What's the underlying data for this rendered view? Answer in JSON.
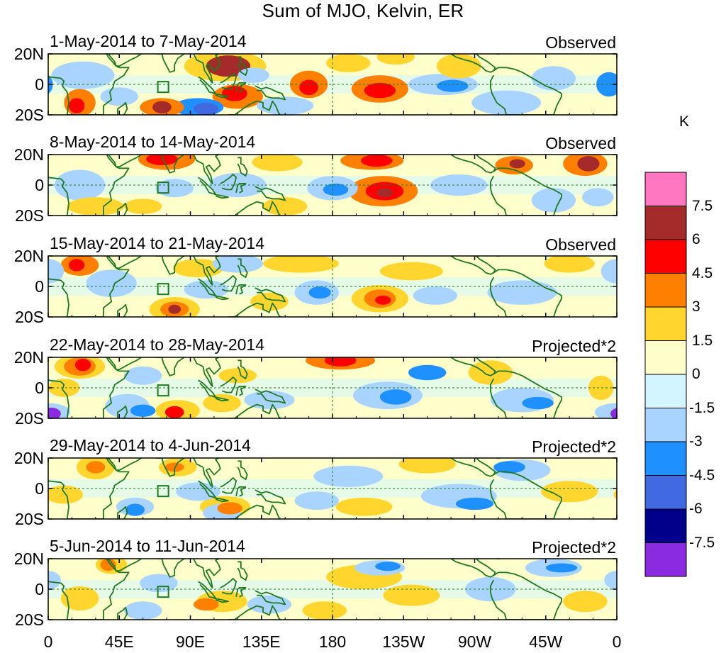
{
  "title": "Sum of MJO, Kelvin, ER",
  "panels": [
    {
      "date_range": "1-May-2014 to 7-May-2014",
      "status": "Observed"
    },
    {
      "date_range": "8-May-2014 to 14-May-2014",
      "status": "Observed"
    },
    {
      "date_range": "15-May-2014 to 21-May-2014",
      "status": "Observed"
    },
    {
      "date_range": "22-May-2014 to 28-May-2014",
      "status": "Projected*2"
    },
    {
      "date_range": "29-May-2014 to 4-Jun-2014",
      "status": "Projected*2"
    },
    {
      "date_range": "5-Jun-2014 to 11-Jun-2014",
      "status": "Projected*2"
    }
  ],
  "lat_labels": [
    "20N",
    "0",
    "20S"
  ],
  "lon_labels": [
    "0",
    "45E",
    "90E",
    "135E",
    "180",
    "135W",
    "90W",
    "45W",
    "0"
  ],
  "colorbar": {
    "unit": "K",
    "labels": [
      "7.5",
      "6",
      "4.5",
      "3",
      "1.5",
      "0",
      "-1.5",
      "-3",
      "-4.5",
      "-6",
      "-7.5"
    ],
    "colors": [
      "#ff77c0",
      "#a52a2a",
      "#ff0000",
      "#ff7f00",
      "#ffd52e",
      "#ffffcc",
      "#d2f5ff",
      "#a8d4ff",
      "#1e90ff",
      "#4169e1",
      "#00008b",
      "#8a2be2"
    ]
  },
  "map_colors": {
    "land": "#1f7a1f",
    "grid": "#1f7a1f",
    "background": "#ffffcc"
  }
}
